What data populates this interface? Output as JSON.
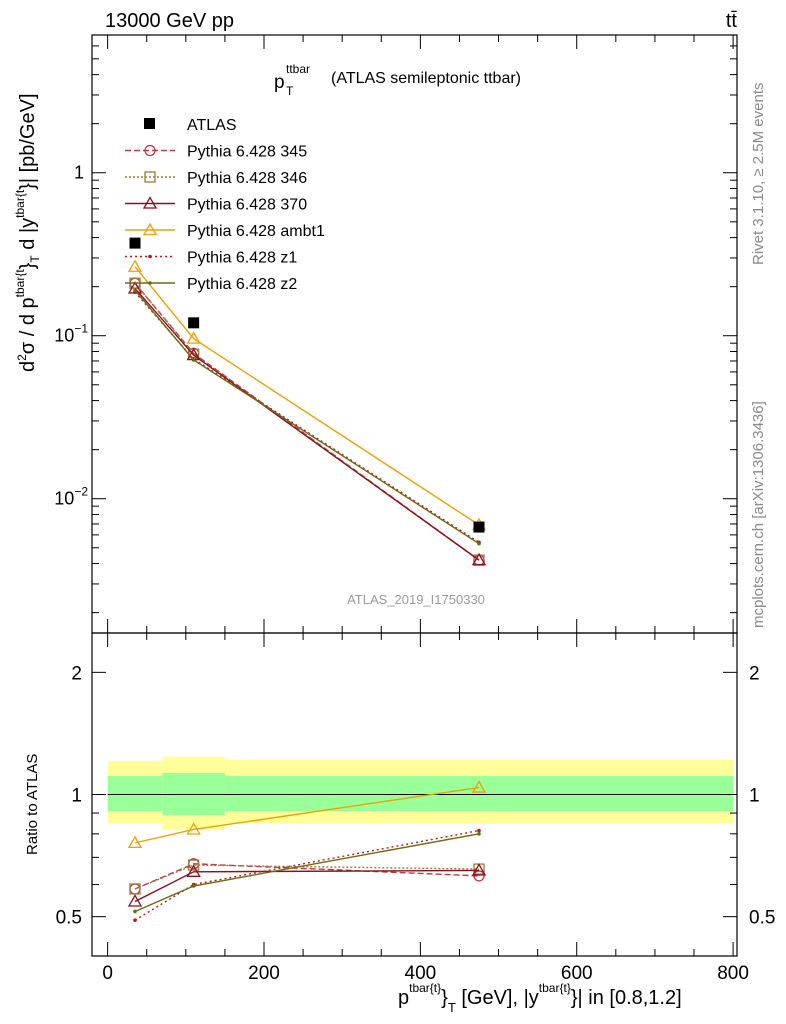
{
  "header": {
    "energy_label": "13000 GeV pp",
    "process_label": "tt̄"
  },
  "title": {
    "main": "p",
    "sup": "ttbar",
    "sub": "T",
    "rest": "(ATLAS semileptonic ttbar)"
  },
  "side_labels": {
    "rivet": "Rivet 3.1.10, ≥ 2.5M events",
    "mcplots": "mcplots.cern.ch [arXiv:1306.3436]"
  },
  "watermark": "ATLAS_2019_I1750330",
  "axes": {
    "ylabel_top": {
      "d2": "d",
      "sup2": "2",
      "sigma": "σ / d p",
      "sup_tbar1": "tbar{t",
      "sub_T": "}",
      "sub_T2": "T",
      "mid": " d |y",
      "sup_tbar2": "tbar{t",
      "end": "}| [pb/GeV]"
    },
    "ylabel_bottom": "Ratio to ATLAS",
    "xlabel": {
      "p": "p",
      "sup1": "tbar{t}",
      "sub1": "}",
      "subT": "T",
      "mid": " [GeV], |y",
      "sup2": "tbar{t}",
      "end": "}| in [0.8,1.2]"
    },
    "x_ticks": [
      "0",
      "200",
      "400",
      "600",
      "800"
    ],
    "top_y_ticks": [
      {
        "base": "10",
        "exp": "−2",
        "value": 0.01
      },
      {
        "base": "10",
        "exp": "−1",
        "value": 0.1
      },
      {
        "base": "1",
        "exp": "",
        "value": 1
      }
    ],
    "ratio_y_ticks": [
      {
        "label": "0.5",
        "value": 0.5
      },
      {
        "label": "1",
        "value": 1
      },
      {
        "label": "2",
        "value": 2
      }
    ]
  },
  "chart_data": {
    "type": "line",
    "x_range": [
      -20,
      805
    ],
    "top_panel": {
      "y_scale": "log",
      "ylim": [
        0.0015,
        7.0
      ],
      "bins": [
        [
          0,
          70
        ],
        [
          70,
          150
        ],
        [
          150,
          800
        ]
      ],
      "data": {
        "name": "ATLAS",
        "x": [
          35,
          110,
          475
        ],
        "y": [
          0.37,
          0.12,
          0.0067
        ]
      },
      "series": [
        {
          "name": "Pythia 6.428 345",
          "color": "#c0364a",
          "marker": "circle",
          "dash": "6,3",
          "x": [
            35,
            110,
            475
          ],
          "y": [
            0.21,
            0.078,
            0.0042
          ]
        },
        {
          "name": "Pythia 6.428 346",
          "color": "#a07a3c",
          "marker": "square",
          "dash": "2,2",
          "x": [
            35,
            110,
            475
          ],
          "y": [
            0.21,
            0.077,
            0.0042
          ]
        },
        {
          "name": "Pythia 6.428 370",
          "color": "#8b0f1e",
          "marker": "triangle",
          "dash": "",
          "x": [
            35,
            110,
            475
          ],
          "y": [
            0.195,
            0.076,
            0.0042
          ]
        },
        {
          "name": "Pythia 6.428 ambt1",
          "color": "#f0a000",
          "marker": "triangle",
          "dash": "",
          "x": [
            35,
            110,
            475
          ],
          "y": [
            0.265,
            0.096,
            0.0069
          ]
        },
        {
          "name": "Pythia 6.428 z1",
          "color": "#c01818",
          "marker": "dot",
          "dash": "2,3",
          "x": [
            35,
            110,
            475
          ],
          "y": [
            0.185,
            0.072,
            0.0054
          ]
        },
        {
          "name": "Pythia 6.428 z2",
          "color": "#6b6a10",
          "marker": "dot",
          "dash": "",
          "x": [
            35,
            110,
            475
          ],
          "y": [
            0.19,
            0.071,
            0.0053
          ]
        }
      ]
    },
    "ratio_panel": {
      "y_scale": "log",
      "ylim": [
        0.4,
        2.5
      ],
      "band_inner": [
        {
          "x0": 0,
          "x1": 70,
          "lo": 0.91,
          "hi": 1.11
        },
        {
          "x0": 70,
          "x1": 150,
          "lo": 0.89,
          "hi": 1.13
        },
        {
          "x0": 150,
          "x1": 800,
          "lo": 0.91,
          "hi": 1.11
        }
      ],
      "band_outer": [
        {
          "x0": 0,
          "x1": 70,
          "lo": 0.85,
          "hi": 1.21
        },
        {
          "x0": 70,
          "x1": 150,
          "lo": 0.82,
          "hi": 1.24
        },
        {
          "x0": 150,
          "x1": 800,
          "lo": 0.85,
          "hi": 1.22
        }
      ],
      "series": [
        {
          "name": "Pythia 6.428 345",
          "y": [
            0.585,
            0.675,
            0.63
          ]
        },
        {
          "name": "Pythia 6.428 346",
          "y": [
            0.585,
            0.67,
            0.655
          ]
        },
        {
          "name": "Pythia 6.428 370",
          "y": [
            0.545,
            0.645,
            0.65
          ]
        },
        {
          "name": "Pythia 6.428 ambt1",
          "y": [
            0.76,
            0.82,
            1.04
          ]
        },
        {
          "name": "Pythia 6.428 z1",
          "y": [
            0.49,
            0.6,
            0.815
          ]
        },
        {
          "name": "Pythia 6.428 z2",
          "y": [
            0.515,
            0.595,
            0.8
          ]
        }
      ]
    }
  }
}
